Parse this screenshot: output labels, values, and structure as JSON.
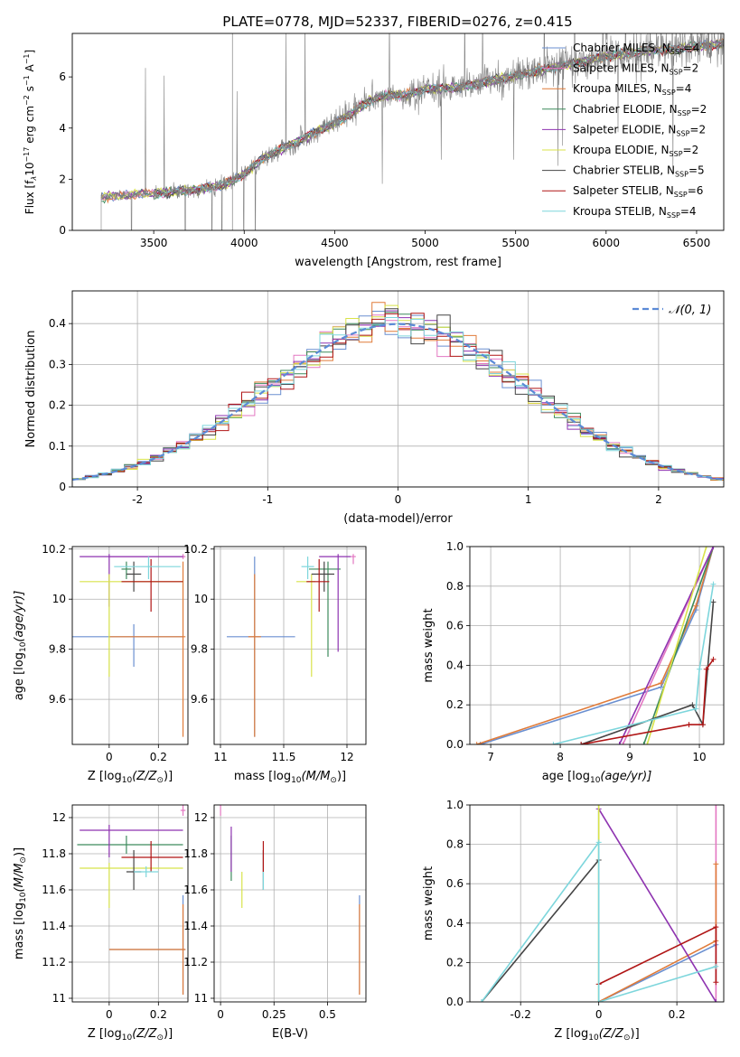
{
  "title": "PLATE=0778, MJD=52337, FIBERID=0276, z=0.415",
  "models": [
    {
      "name": "Chabrier MILES, N",
      "sub": "SSP",
      "suffix": "=4",
      "color": "#6a8fd0"
    },
    {
      "name": "Salpeter MILES, N",
      "sub": "SSP",
      "suffix": "=2",
      "color": "#e377c2"
    },
    {
      "name": "Kroupa MILES, N",
      "sub": "SSP",
      "suffix": "=4",
      "color": "#e07b39"
    },
    {
      "name": "Chabrier ELODIE, N",
      "sub": "SSP",
      "suffix": "=2",
      "color": "#3c8a5c"
    },
    {
      "name": "Salpeter ELODIE, N",
      "sub": "SSP",
      "suffix": "=2",
      "color": "#8e33b0"
    },
    {
      "name": "Kroupa ELODIE, N",
      "sub": "SSP",
      "suffix": "=2",
      "color": "#d8e34a"
    },
    {
      "name": "Chabrier STELIB, N",
      "sub": "SSP",
      "suffix": "=5",
      "color": "#444444"
    },
    {
      "name": "Salpeter STELIB, N",
      "sub": "SSP",
      "suffix": "=6",
      "color": "#b01515"
    },
    {
      "name": "Kroupa STELIB, N",
      "sub": "SSP",
      "suffix": "=4",
      "color": "#7dd6dc"
    }
  ],
  "chart_data": [
    {
      "id": "spectrum",
      "type": "line",
      "xlabel": "wavelength [Angstrom, rest frame]",
      "ylabel": "Flux [f",
      "ylabel_lambda": "λ",
      "ylabel_rest": "10",
      "ylabel_exp": "−17",
      "ylabel_units": " erg cm",
      "ylabel_cm_exp": "−2",
      "ylabel_s": " s",
      "ylabel_s_exp": "−1",
      "ylabel_A": " A",
      "ylabel_A_exp": "−1",
      "ylabel_close": "]",
      "xlim": [
        3050,
        6650
      ],
      "ylim": [
        0,
        7.7
      ],
      "xticks": [
        3500,
        4000,
        4500,
        5000,
        5500,
        6000,
        6500
      ],
      "yticks": [
        0,
        2,
        4,
        6
      ],
      "data_color": "#808080",
      "data_range": [
        3210,
        6650
      ],
      "continuum": [
        [
          3210,
          1.3
        ],
        [
          3400,
          1.4
        ],
        [
          3600,
          1.5
        ],
        [
          3750,
          1.6
        ],
        [
          3900,
          1.8
        ],
        [
          4000,
          2.2
        ],
        [
          4100,
          2.8
        ],
        [
          4300,
          3.5
        ],
        [
          4500,
          4.2
        ],
        [
          4600,
          4.6
        ],
        [
          4700,
          5.1
        ],
        [
          4800,
          5.3
        ],
        [
          4900,
          5.3
        ],
        [
          5000,
          5.5
        ],
        [
          5200,
          5.6
        ],
        [
          5400,
          5.9
        ],
        [
          5600,
          6.2
        ],
        [
          5800,
          6.5
        ],
        [
          6000,
          6.8
        ],
        [
          6200,
          7.0
        ],
        [
          6400,
          7.1
        ],
        [
          6650,
          7.3
        ]
      ]
    },
    {
      "id": "residuals",
      "type": "histogram",
      "xlabel": "(data-model)/error",
      "ylabel": "Normed distribution",
      "xlim": [
        -2.5,
        2.5
      ],
      "ylim": [
        0,
        0.48
      ],
      "xticks": [
        -2,
        -1,
        0,
        1,
        2
      ],
      "yticks": [
        0,
        0.1,
        0.2,
        0.3,
        0.4
      ],
      "bin_width": 0.1,
      "reference_label": "𝒩(0, 1)",
      "reference_color": "#5b8ad6"
    },
    {
      "id": "age_vs_Z",
      "type": "scatter-errorbar",
      "xlabel": "Z [log",
      "xlabel_sub": "10",
      "xlabel_rest": "(Z/Z",
      "xlabel_sun": "⊙",
      "xlabel_close": ")]",
      "ylabel": "age  [log",
      "ylabel_sub": "10",
      "ylabel_rest": "(age/yr)]",
      "xlim": [
        -0.15,
        0.32
      ],
      "ylim": [
        9.42,
        10.21
      ],
      "xticks": [
        0.0,
        0.2
      ],
      "yticks": [
        9.6,
        9.8,
        10.0,
        10.2
      ],
      "points": [
        {
          "m": 0,
          "x": 0.1,
          "y": 9.85,
          "xe": [
            0.3,
            0.2
          ],
          "ye": [
            0.12,
            0.05
          ]
        },
        {
          "m": 1,
          "x": 0.3,
          "y": 10.17,
          "xe": [
            0.3,
            0.01
          ],
          "ye": [
            0.01,
            0.01
          ]
        },
        {
          "m": 2,
          "x": 0.3,
          "y": 9.85,
          "xe": [
            0.3,
            0.01
          ],
          "ye": [
            0.4,
            0.3
          ]
        },
        {
          "m": 3,
          "x": 0.07,
          "y": 10.12,
          "xe": [
            0.02,
            0.02
          ],
          "ye": [
            0.04,
            0.03
          ]
        },
        {
          "m": 4,
          "x": 0.0,
          "y": 10.17,
          "xe": [
            0.12,
            0.3
          ],
          "ye": [
            0.2,
            0.01
          ]
        },
        {
          "m": 5,
          "x": 0.0,
          "y": 10.07,
          "xe": [
            0.12,
            0.3
          ],
          "ye": [
            0.38,
            0.03
          ]
        },
        {
          "m": 6,
          "x": 0.1,
          "y": 10.1,
          "xe": [
            0.03,
            0.03
          ],
          "ye": [
            0.07,
            0.05
          ]
        },
        {
          "m": 7,
          "x": 0.17,
          "y": 10.07,
          "xe": [
            0.12,
            0.13
          ],
          "ye": [
            0.12,
            0.09
          ]
        },
        {
          "m": 8,
          "x": 0.16,
          "y": 10.13,
          "xe": [
            0.14,
            0.13
          ],
          "ye": [
            0.05,
            0.04
          ]
        }
      ]
    },
    {
      "id": "age_vs_mass",
      "type": "scatter-errorbar",
      "xlabel": "mass [log",
      "xlabel_sub": "10",
      "xlabel_rest": "(M/M",
      "xlabel_sun": "⊙",
      "xlabel_close": ")]",
      "xlim": [
        10.95,
        12.15
      ],
      "ylim": [
        9.42,
        10.21
      ],
      "xticks": [
        11.0,
        11.5,
        12.0
      ],
      "yticks": [
        9.6,
        9.8,
        10.0,
        10.2
      ],
      "points": [
        {
          "m": 0,
          "x": 11.27,
          "y": 9.85,
          "xe": [
            0.22,
            0.32
          ],
          "ye": [
            0.4,
            0.32
          ]
        },
        {
          "m": 1,
          "x": 12.05,
          "y": 10.17,
          "xe": [
            0.02,
            0.02
          ],
          "ye": [
            0.03,
            0.01
          ]
        },
        {
          "m": 2,
          "x": 11.27,
          "y": 9.85,
          "xe": [
            0.05,
            0.05
          ],
          "ye": [
            0.4,
            0.25
          ]
        },
        {
          "m": 3,
          "x": 11.85,
          "y": 10.12,
          "xe": [
            0.15,
            0.1
          ],
          "ye": [
            0.35,
            0.03
          ]
        },
        {
          "m": 4,
          "x": 11.93,
          "y": 10.17,
          "xe": [
            0.15,
            0.1
          ],
          "ye": [
            0.38,
            0.01
          ]
        },
        {
          "m": 5,
          "x": 11.72,
          "y": 10.07,
          "xe": [
            0.12,
            0.03
          ],
          "ye": [
            0.38,
            0.03
          ]
        },
        {
          "m": 6,
          "x": 11.82,
          "y": 10.1,
          "xe": [
            0.1,
            0.08
          ],
          "ye": [
            0.07,
            0.05
          ]
        },
        {
          "m": 7,
          "x": 11.78,
          "y": 10.07,
          "xe": [
            0.1,
            0.08
          ],
          "ye": [
            0.12,
            0.09
          ]
        },
        {
          "m": 8,
          "x": 11.69,
          "y": 10.13,
          "xe": [
            0.05,
            0.05
          ],
          "ye": [
            0.05,
            0.04
          ]
        }
      ]
    },
    {
      "id": "weight_vs_age",
      "type": "line",
      "xlabel": "age  [log",
      "xlabel_sub": "10",
      "xlabel_rest": "(age/yr)]",
      "ylabel": "mass weight",
      "xlim": [
        6.7,
        10.35
      ],
      "ylim": [
        0,
        1.0
      ],
      "xticks": [
        7,
        8,
        9,
        10
      ],
      "yticks": [
        0.0,
        0.2,
        0.4,
        0.6,
        0.8,
        1.0
      ],
      "series": [
        {
          "m": 0,
          "pts": [
            [
              6.85,
              0
            ],
            [
              9.45,
              0.29
            ],
            [
              9.95,
              0.68
            ],
            [
              10.2,
              1.0
            ]
          ]
        },
        {
          "m": 1,
          "pts": [
            [
              8.9,
              0
            ],
            [
              10.2,
              1.0
            ]
          ]
        },
        {
          "m": 2,
          "pts": [
            [
              6.8,
              0
            ],
            [
              9.45,
              0.31
            ],
            [
              9.95,
              0.7
            ],
            [
              10.2,
              1.0
            ]
          ]
        },
        {
          "m": 3,
          "pts": [
            [
              9.2,
              0
            ],
            [
              10.2,
              1.0
            ]
          ]
        },
        {
          "m": 4,
          "pts": [
            [
              8.85,
              0
            ],
            [
              10.2,
              1.0
            ]
          ]
        },
        {
          "m": 5,
          "pts": [
            [
              9.25,
              0
            ],
            [
              10.1,
              1.0
            ]
          ]
        },
        {
          "m": 6,
          "pts": [
            [
              8.3,
              0
            ],
            [
              9.9,
              0.2
            ],
            [
              10.05,
              0.1
            ],
            [
              10.2,
              0.72
            ]
          ]
        },
        {
          "m": 7,
          "pts": [
            [
              8.3,
              0
            ],
            [
              9.85,
              0.1
            ],
            [
              10.05,
              0.1
            ],
            [
              10.1,
              0.38
            ],
            [
              10.2,
              0.43
            ]
          ]
        },
        {
          "m": 8,
          "pts": [
            [
              7.9,
              0
            ],
            [
              9.95,
              0.18
            ],
            [
              10.0,
              0.38
            ],
            [
              10.2,
              0.81
            ]
          ]
        }
      ]
    },
    {
      "id": "mass_vs_Z",
      "type": "scatter-errorbar",
      "xlabel": "Z [log",
      "xlabel_sub": "10",
      "xlabel_rest": "(Z/Z",
      "xlabel_sun": "⊙",
      "xlabel_close": ")]",
      "ylabel": "mass [log",
      "ylabel_sub": "10",
      "ylabel_rest": "(M/M",
      "ylabel_sun": "⊙",
      "ylabel_close": ")]",
      "xlim": [
        -0.15,
        0.32
      ],
      "ylim": [
        10.98,
        12.07
      ],
      "xticks": [
        0.0,
        0.2
      ],
      "yticks": [
        11.0,
        11.2,
        11.4,
        11.6,
        11.8,
        12.0
      ],
      "points": [
        {
          "m": 0,
          "x": 0.3,
          "y": 11.27,
          "xe": [
            0.3,
            0.01
          ],
          "ye": [
            0.25,
            0.3
          ]
        },
        {
          "m": 1,
          "x": 0.3,
          "y": 12.04,
          "xe": [
            0.01,
            0.01
          ],
          "ye": [
            0.03,
            0.03
          ]
        },
        {
          "m": 2,
          "x": 0.3,
          "y": 11.27,
          "xe": [
            0.3,
            0.01
          ],
          "ye": [
            0.25,
            0.25
          ]
        },
        {
          "m": 3,
          "x": 0.07,
          "y": 11.85,
          "xe": [
            0.2,
            0.23
          ],
          "ye": [
            0.05,
            0.05
          ]
        },
        {
          "m": 4,
          "x": 0.0,
          "y": 11.93,
          "xe": [
            0.12,
            0.3
          ],
          "ye": [
            0.15,
            0.03
          ]
        },
        {
          "m": 5,
          "x": 0.0,
          "y": 11.72,
          "xe": [
            0.12,
            0.3
          ],
          "ye": [
            0.22,
            0.03
          ]
        },
        {
          "m": 6,
          "x": 0.1,
          "y": 11.7,
          "xe": [
            0.03,
            0.03
          ],
          "ye": [
            0.1,
            0.12
          ]
        },
        {
          "m": 7,
          "x": 0.17,
          "y": 11.78,
          "xe": [
            0.12,
            0.13
          ],
          "ye": [
            0.08,
            0.09
          ]
        },
        {
          "m": 8,
          "x": 0.15,
          "y": 11.7,
          "xe": [
            0.05,
            0.05
          ],
          "ye": [
            0.03,
            0.03
          ]
        }
      ]
    },
    {
      "id": "mass_vs_EBV",
      "type": "scatter-errorbar",
      "xlabel": "E(B-V)",
      "xlim": [
        -0.03,
        0.68
      ],
      "ylim": [
        10.98,
        12.07
      ],
      "xticks": [
        0.0,
        0.25,
        0.5
      ],
      "yticks": [
        11.0,
        11.2,
        11.4,
        11.6,
        11.8,
        12.0
      ],
      "points": [
        {
          "m": 0,
          "x": 0.65,
          "y": 11.27,
          "xe": [
            0,
            0
          ],
          "ye": [
            0.25,
            0.3
          ]
        },
        {
          "m": 1,
          "x": 0.0,
          "y": 12.04,
          "xe": [
            0,
            0
          ],
          "ye": [
            0.03,
            0.03
          ]
        },
        {
          "m": 2,
          "x": 0.65,
          "y": 11.27,
          "xe": [
            0,
            0
          ],
          "ye": [
            0.25,
            0.25
          ]
        },
        {
          "m": 3,
          "x": 0.05,
          "y": 11.85,
          "xe": [
            0,
            0
          ],
          "ye": [
            0.2,
            0.05
          ]
        },
        {
          "m": 4,
          "x": 0.05,
          "y": 11.85,
          "xe": [
            0,
            0
          ],
          "ye": [
            0.15,
            0.1
          ]
        },
        {
          "m": 5,
          "x": 0.1,
          "y": 11.62,
          "xe": [
            0,
            0
          ],
          "ye": [
            0.12,
            0.08
          ]
        },
        {
          "m": 6,
          "x": 0.2,
          "y": 11.7,
          "xe": [
            0,
            0
          ],
          "ye": [
            0.1,
            0.12
          ]
        },
        {
          "m": 7,
          "x": 0.2,
          "y": 11.78,
          "xe": [
            0,
            0
          ],
          "ye": [
            0.08,
            0.09
          ]
        },
        {
          "m": 8,
          "x": 0.2,
          "y": 11.65,
          "xe": [
            0,
            0
          ],
          "ye": [
            0.05,
            0.05
          ]
        }
      ]
    },
    {
      "id": "weight_vs_Z",
      "type": "line",
      "xlabel": "Z [log",
      "xlabel_sub": "10",
      "xlabel_rest": "(Z/Z",
      "xlabel_sun": "⊙",
      "xlabel_close": ")]",
      "ylabel": "mass weight",
      "xlim": [
        -0.33,
        0.32
      ],
      "ylim": [
        0,
        1.0
      ],
      "xticks": [
        -0.2,
        0.0,
        0.2
      ],
      "yticks": [
        0.0,
        0.2,
        0.4,
        0.6,
        0.8,
        1.0
      ],
      "series": [
        {
          "m": 0,
          "pts": [
            [
              0.0,
              0
            ],
            [
              0.3,
              0.29
            ]
          ]
        },
        {
          "m": 1,
          "pts": [
            [
              0.3,
              0
            ],
            [
              0.3,
              1.0
            ]
          ]
        },
        {
          "m": 2,
          "pts": [
            [
              0.0,
              0
            ],
            [
              0.3,
              0.31
            ],
            [
              0.3,
              0.7
            ]
          ]
        },
        {
          "m": 3,
          "pts": [
            [
              0.0,
              0
            ],
            [
              0.0,
              1.0
            ]
          ]
        },
        {
          "m": 4,
          "pts": [
            [
              0.0,
              0.98
            ],
            [
              0.3,
              0
            ]
          ]
        },
        {
          "m": 5,
          "pts": [
            [
              0.0,
              0
            ],
            [
              0.0,
              1.0
            ]
          ]
        },
        {
          "m": 6,
          "pts": [
            [
              -0.3,
              0
            ],
            [
              0.0,
              0.72
            ]
          ]
        },
        {
          "m": 7,
          "pts": [
            [
              0.0,
              0.09
            ],
            [
              0.3,
              0.38
            ],
            [
              0.3,
              0.1
            ]
          ]
        },
        {
          "m": 8,
          "pts": [
            [
              -0.3,
              0
            ],
            [
              0.0,
              0.81
            ],
            [
              0.0,
              0.0
            ],
            [
              0.3,
              0.18
            ]
          ]
        }
      ]
    }
  ]
}
